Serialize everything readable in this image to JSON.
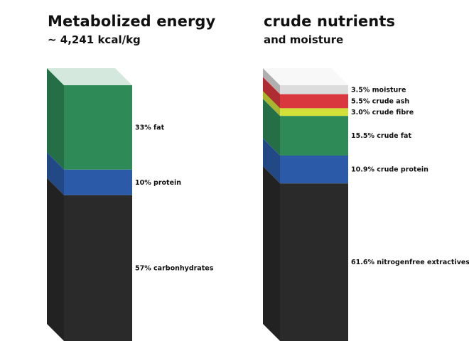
{
  "chart_data": [
    {
      "type": "stacked-bar",
      "title": "Metabolized energy",
      "subtitle": "~ 4,241 kcal/kg",
      "unit": "%",
      "segments": [
        {
          "label": "33% fat",
          "value": 33,
          "color": "#2e8b57"
        },
        {
          "label": "10% protein",
          "value": 10,
          "color": "#2b5aa8"
        },
        {
          "label": "57% carbonhydrates",
          "value": 57,
          "color": "#2a2a2a"
        }
      ]
    },
    {
      "type": "stacked-bar",
      "title": "crude nutrients",
      "subtitle": "and moisture",
      "unit": "%",
      "segments": [
        {
          "label": "3.5% moisture",
          "value": 3.5,
          "color": "#dcdcdc"
        },
        {
          "label": "5.5% crude ash",
          "value": 5.5,
          "color": "#d9383e"
        },
        {
          "label": "3.0% crude fibre",
          "value": 3.0,
          "color": "#d4e03a"
        },
        {
          "label": "15.5% crude fat",
          "value": 15.5,
          "color": "#2e8b57"
        },
        {
          "label": "10.9% crude protein",
          "value": 10.9,
          "color": "#2b5aa8"
        },
        {
          "label": "61.6% nitrogenfree extractives",
          "value": 61.6,
          "color": "#2a2a2a"
        }
      ]
    }
  ]
}
